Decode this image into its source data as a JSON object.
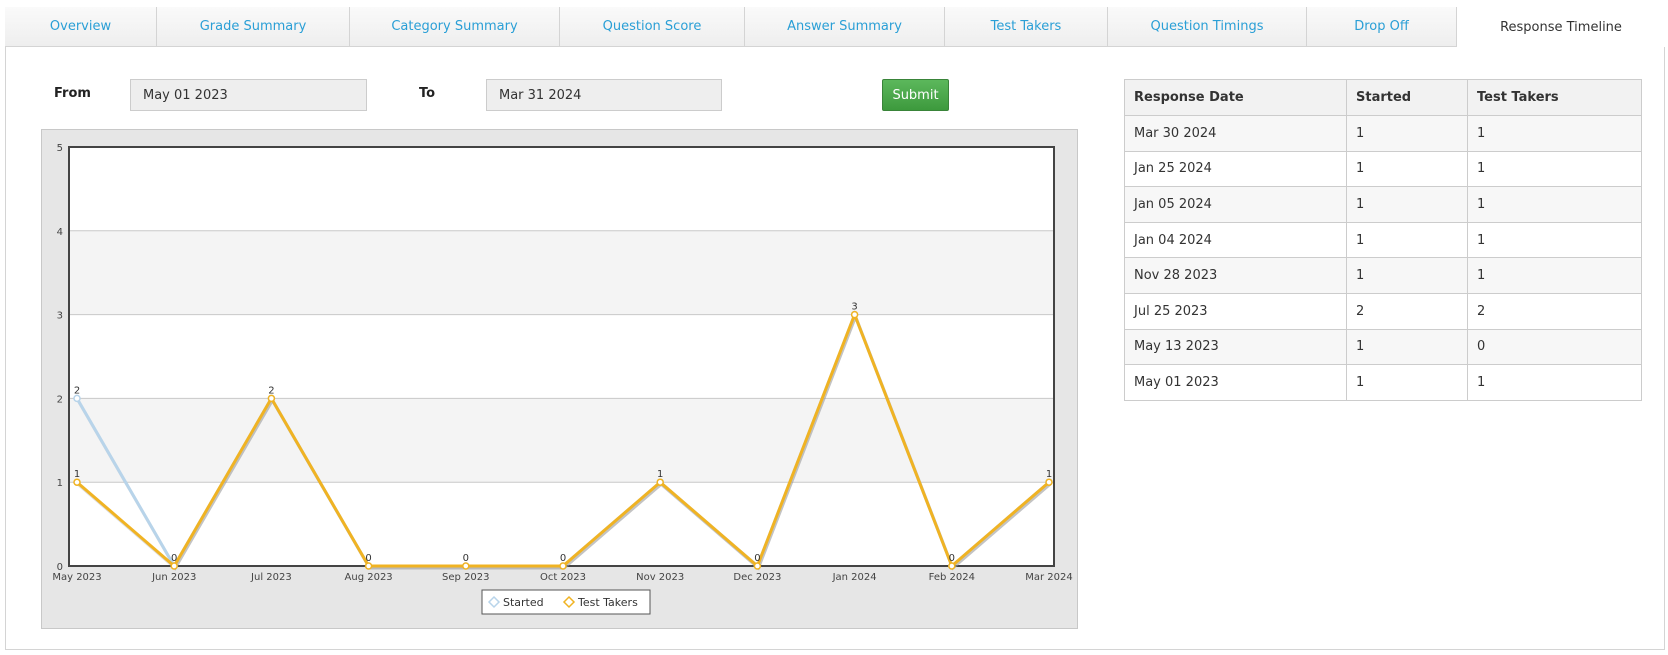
{
  "tabs": [
    {
      "label": "Overview"
    },
    {
      "label": "Grade Summary"
    },
    {
      "label": "Category Summary"
    },
    {
      "label": "Question Score"
    },
    {
      "label": "Answer Summary"
    },
    {
      "label": "Test Takers"
    },
    {
      "label": "Question Timings"
    },
    {
      "label": "Drop Off"
    },
    {
      "label": "Response Timeline",
      "active": true
    }
  ],
  "filter": {
    "from_label": "From",
    "from_value": "May 01 2023",
    "to_label": "To",
    "to_value": "Mar 31 2024",
    "submit_label": "Submit"
  },
  "table": {
    "headers": [
      "Response Date",
      "Started",
      "Test Takers"
    ],
    "rows": [
      [
        "Mar 30 2024",
        "1",
        "1"
      ],
      [
        "Jan 25 2024",
        "1",
        "1"
      ],
      [
        "Jan 05 2024",
        "1",
        "1"
      ],
      [
        "Jan 04 2024",
        "1",
        "1"
      ],
      [
        "Nov 28 2023",
        "1",
        "1"
      ],
      [
        "Jul 25 2023",
        "2",
        "2"
      ],
      [
        "May 13 2023",
        "1",
        "0"
      ],
      [
        "May 01 2023",
        "1",
        "1"
      ]
    ]
  },
  "chart_data": {
    "type": "line",
    "categories": [
      "May 2023",
      "Jun 2023",
      "Jul 2023",
      "Aug 2023",
      "Sep 2023",
      "Oct 2023",
      "Nov 2023",
      "Dec 2023",
      "Jan 2024",
      "Feb 2024",
      "Mar 2024"
    ],
    "series": [
      {
        "name": "Started",
        "values": [
          2,
          0,
          2,
          0,
          0,
          0,
          1,
          0,
          3,
          0,
          1
        ],
        "color": "#b8d4ea"
      },
      {
        "name": "Test Takers",
        "values": [
          1,
          0,
          2,
          0,
          0,
          0,
          1,
          0,
          3,
          0,
          1
        ],
        "color": "#f0b323"
      }
    ],
    "ylim": [
      0,
      5
    ],
    "yticks": [
      "0",
      "1",
      "2",
      "3",
      "4",
      "5"
    ],
    "grid": true,
    "legend": "bottom-center"
  }
}
